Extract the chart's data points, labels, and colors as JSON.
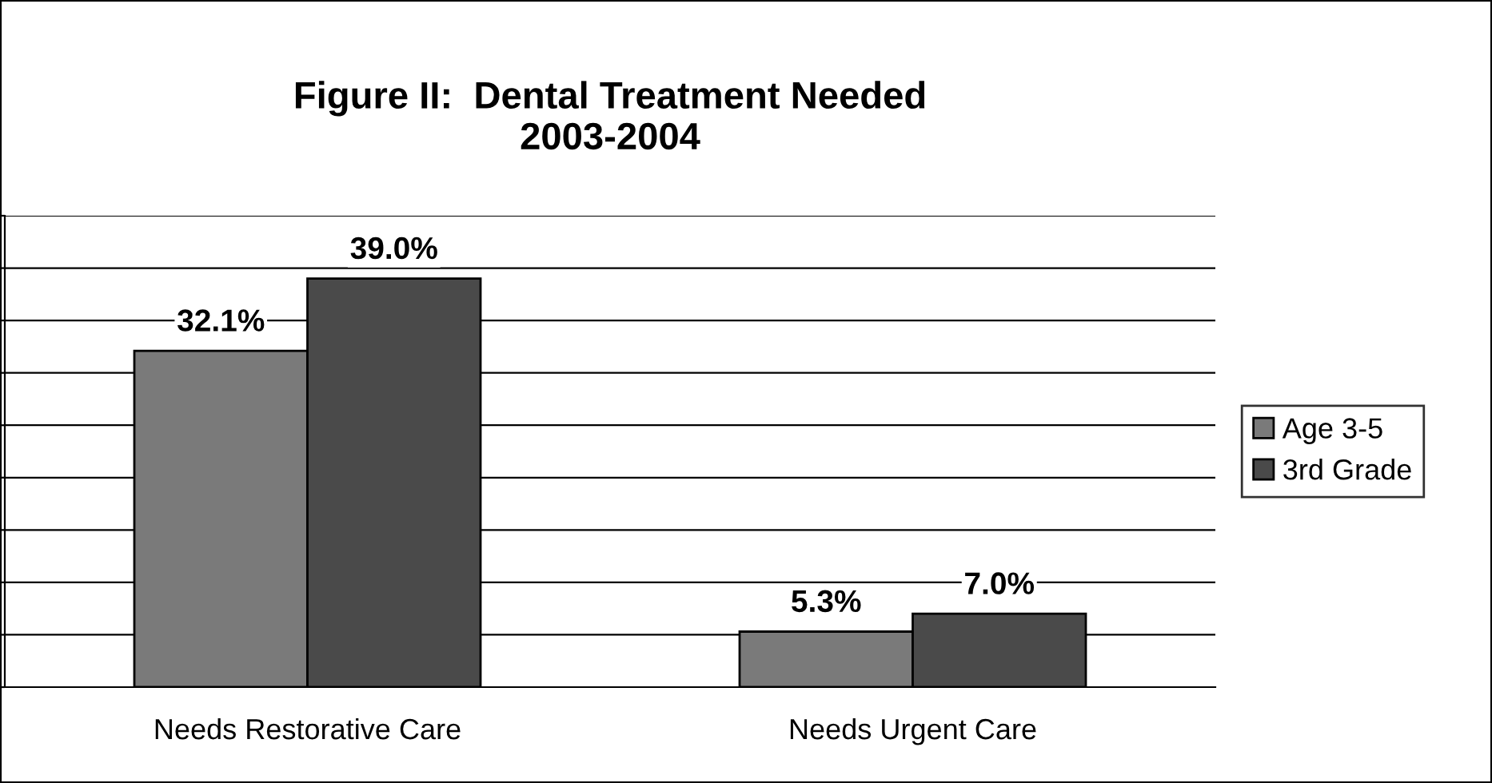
{
  "chart_data": {
    "type": "bar",
    "title": "Figure II:  Dental Treatment Needed\n2003-2004",
    "categories": [
      "Needs Restorative Care",
      "Needs Urgent Care"
    ],
    "series": [
      {
        "name": "Age 3-5",
        "color": "#7a7a7a",
        "values": [
          32.1,
          5.3
        ],
        "value_labels": [
          "32.1%",
          "5.3%"
        ]
      },
      {
        "name": "3rd Grade",
        "color": "#4a4a4a",
        "values": [
          39.0,
          7.0
        ],
        "value_labels": [
          "39.0%",
          "7.0%"
        ]
      }
    ],
    "ylim": [
      0,
      45
    ],
    "yticks": [
      {
        "value": 0,
        "label": null
      },
      {
        "value": 5,
        "label": null
      },
      {
        "value": 10,
        "label": null
      },
      {
        "value": 15,
        "label": null
      },
      {
        "value": 20,
        "label": null
      },
      {
        "value": 25,
        "label": null
      },
      {
        "value": 30,
        "label": null
      },
      {
        "value": 35,
        "label": null
      },
      {
        "value": 40,
        "label": null
      },
      {
        "value": 45,
        "label": null
      }
    ],
    "grid": "y",
    "legend": "right",
    "tick_labels": "x"
  }
}
